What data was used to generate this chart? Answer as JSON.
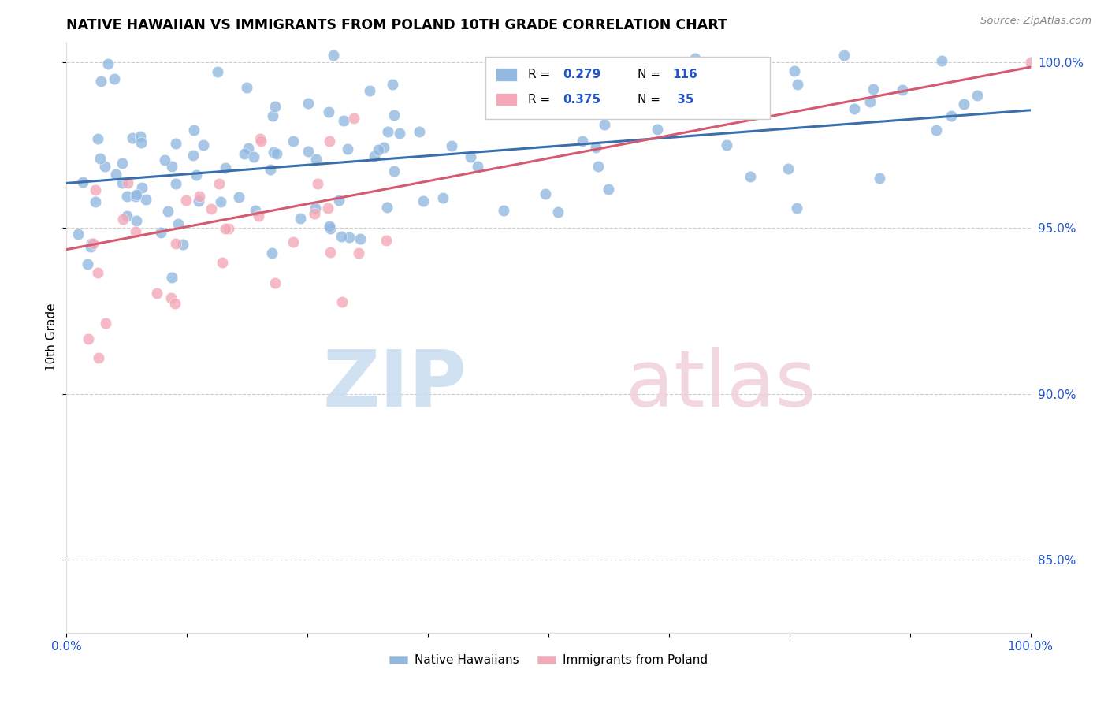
{
  "title": "NATIVE HAWAIIAN VS IMMIGRANTS FROM POLAND 10TH GRADE CORRELATION CHART",
  "source": "Source: ZipAtlas.com",
  "ylabel": "10th Grade",
  "xlim": [
    0,
    1
  ],
  "ylim": [
    0.828,
    1.006
  ],
  "blue_R": 0.279,
  "blue_N": 116,
  "pink_R": 0.375,
  "pink_N": 35,
  "blue_label": "Native Hawaiians",
  "pink_label": "Immigrants from Poland",
  "blue_color": "#92b8e0",
  "pink_color": "#f4a8b8",
  "blue_line_color": "#3a6fad",
  "pink_line_color": "#d45a70",
  "legend_R_color": "#2255cc",
  "yticks": [
    0.85,
    0.9,
    0.95,
    1.0
  ],
  "ytick_labels": [
    "85.0%",
    "90.0%",
    "95.0%",
    "100.0%"
  ],
  "blue_intercept": 0.9635,
  "blue_slope": 0.022,
  "pink_intercept": 0.9435,
  "pink_slope": 0.055
}
